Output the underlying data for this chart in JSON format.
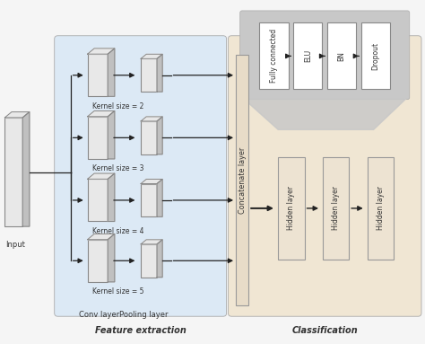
{
  "bg_color": "#f5f5f5",
  "feature_bg": "#dce9f5",
  "classification_bg": "#f0e6d3",
  "gray_bg": "#c8c8c8",
  "box_color": "#d8d8d8",
  "box_edge": "#888888",
  "white_box": "#ffffff",
  "arrow_color": "#222222",
  "text_color": "#333333",
  "kernel_labels": [
    "Kernel size = 2",
    "Kernel size = 3",
    "Kernel size = 4",
    "Kernel size = 5"
  ],
  "bottom_labels": [
    "Conv layer",
    "Pooling layer"
  ],
  "feature_title": "Feature extraction",
  "classification_title": "Classification",
  "input_label": "Input",
  "concat_label": "Concatenate layer",
  "hidden_labels": [
    "Hidden layer",
    "Hidden layer",
    "Hidden layer"
  ],
  "top_labels": [
    "Fully connected",
    "ELU",
    "BN",
    "Dropout"
  ]
}
